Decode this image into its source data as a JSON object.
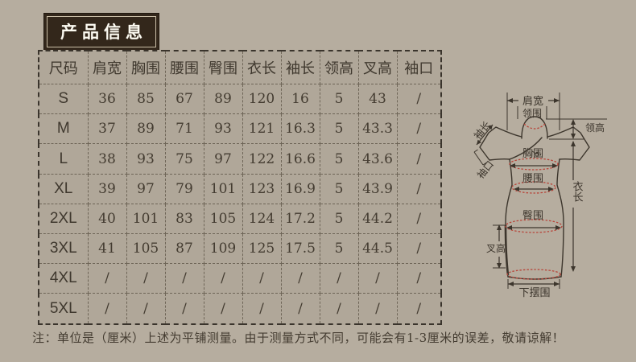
{
  "header": {
    "title": "产品信息"
  },
  "size_table": {
    "columns": [
      "尺码",
      "肩宽",
      "胸围",
      "腰围",
      "臀围",
      "衣长",
      "袖长",
      "领高",
      "叉高",
      "袖口"
    ],
    "rows": [
      {
        "size": "S",
        "values": [
          "36",
          "85",
          "67",
          "89",
          "120",
          "16",
          "5",
          "43",
          "/"
        ]
      },
      {
        "size": "M",
        "values": [
          "37",
          "89",
          "71",
          "93",
          "121",
          "16.3",
          "5",
          "43.3",
          "/"
        ]
      },
      {
        "size": "L",
        "values": [
          "38",
          "93",
          "75",
          "97",
          "122",
          "16.6",
          "5",
          "43.6",
          "/"
        ]
      },
      {
        "size": "XL",
        "values": [
          "39",
          "97",
          "79",
          "101",
          "123",
          "16.9",
          "5",
          "43.9",
          "/"
        ]
      },
      {
        "size": "2XL",
        "values": [
          "40",
          "101",
          "83",
          "105",
          "124",
          "17.2",
          "5",
          "44.2",
          "/"
        ]
      },
      {
        "size": "3XL",
        "values": [
          "41",
          "105",
          "87",
          "109",
          "125",
          "17.5",
          "5",
          "44.5",
          "/"
        ]
      },
      {
        "size": "4XL",
        "values": [
          "/",
          "/",
          "/",
          "/",
          "/",
          "/",
          "/",
          "/",
          "/"
        ]
      },
      {
        "size": "5XL",
        "values": [
          "/",
          "/",
          "/",
          "/",
          "/",
          "/",
          "/",
          "/",
          "/"
        ]
      }
    ]
  },
  "note": {
    "text": "注：单位是（厘米）上述为平铺测量。由于测量方式不同，可能会有1-3厘米的误差，敬请谅解！"
  },
  "diagram": {
    "labels": {
      "shoulder_width": "肩宽",
      "collar_girth": "领围",
      "collar_height": "领高",
      "sleeve_length": "袖长",
      "cuff": "袖口",
      "bust": "胸围",
      "waist": "腰围",
      "hip": "臀围",
      "slit_height": "叉高",
      "garment_length": "衣长",
      "hem": "下摆围"
    }
  },
  "colors": {
    "page_background": "#b6ad9f",
    "table_background": "#b0a799",
    "title_background": "#33271b",
    "title_text": "#fdfbf2",
    "line": "#3c352c",
    "accent_red": "#b8453a",
    "text": "#443c31"
  }
}
